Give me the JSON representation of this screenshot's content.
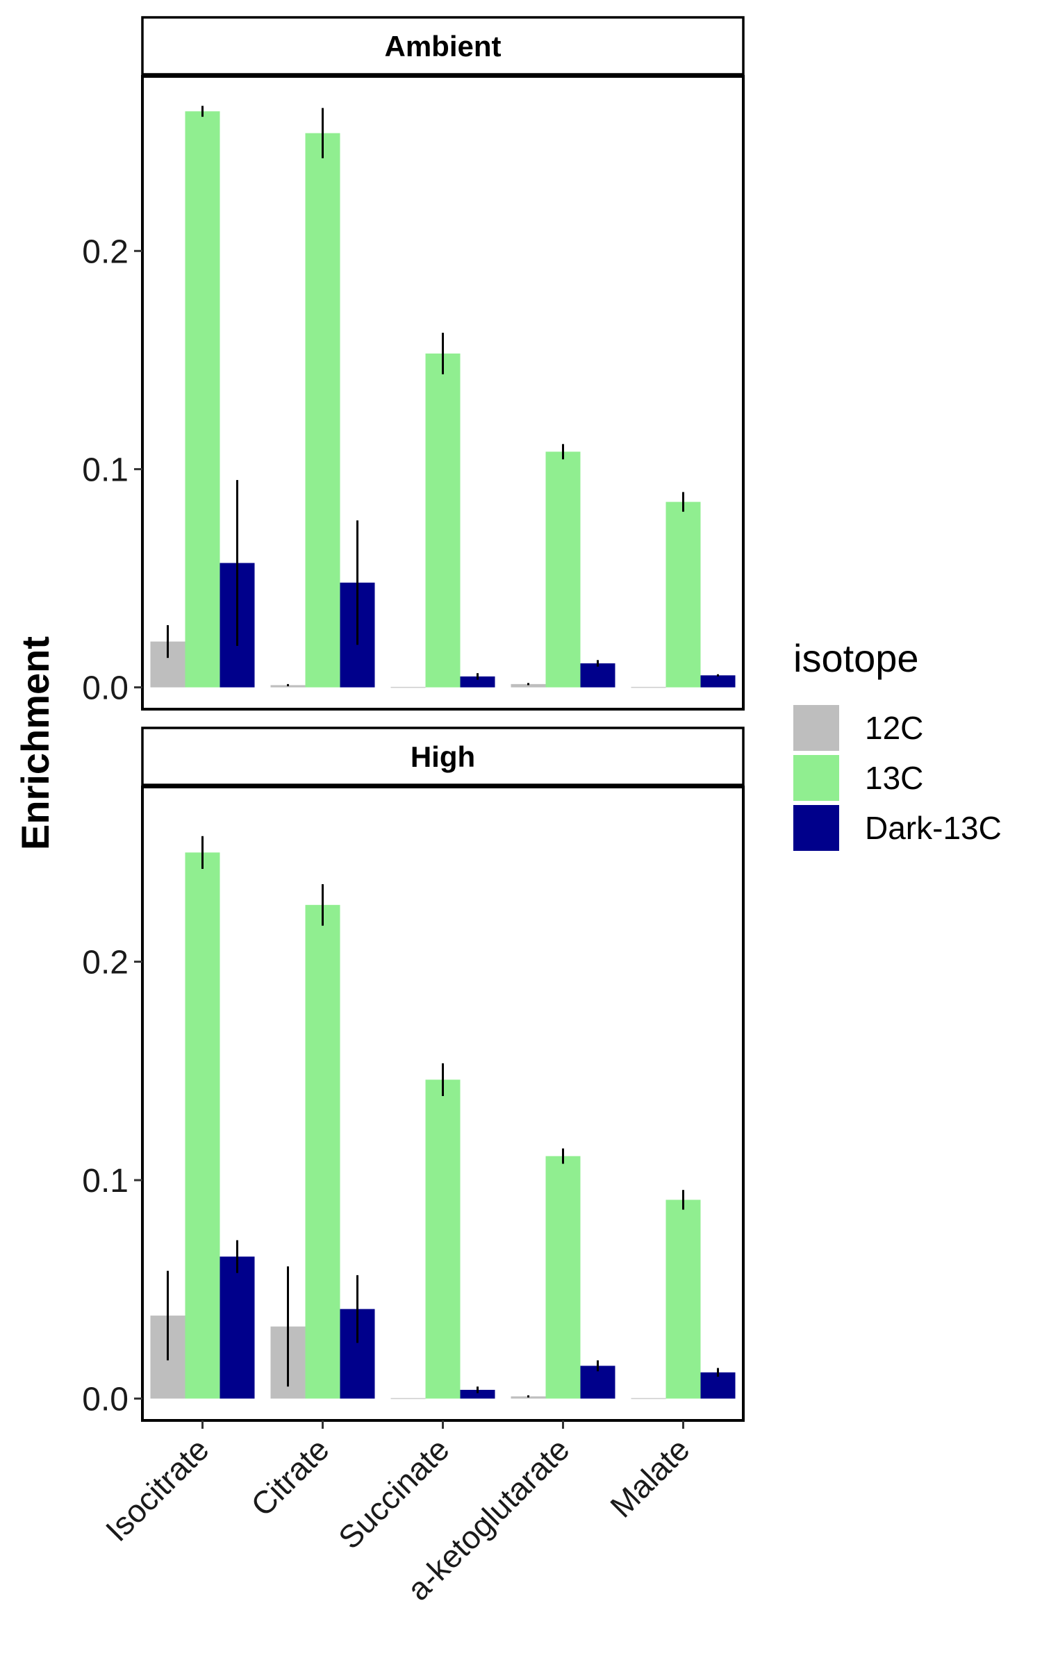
{
  "chart_data": {
    "type": "bar",
    "ylabel": "Enrichment",
    "xlabel": "",
    "categories": [
      "Isocitrate",
      "Citrate",
      "Succinate",
      "a-ketoglutarate",
      "Malate"
    ],
    "ylim": [
      -0.01,
      0.28
    ],
    "yticks": [
      0.0,
      0.1,
      0.2
    ],
    "ytick_labels": [
      "0.0",
      "0.1",
      "0.2"
    ],
    "grid": false,
    "legend": {
      "title": "isotope",
      "placement": "right",
      "entries": [
        {
          "label": "12C",
          "color": "#bebebe"
        },
        {
          "label": "13C",
          "color": "#90ee90"
        },
        {
          "label": "Dark-13C",
          "color": "#00008b"
        }
      ]
    },
    "panels": [
      {
        "strip": "Ambient",
        "series": [
          {
            "name": "12C",
            "color": "#bebebe",
            "values": [
              0.021,
              0.001,
              0.0,
              0.0015,
              0.0
            ],
            "errors": [
              0.0075,
              0.0005,
              0.0,
              0.0005,
              0.0
            ]
          },
          {
            "name": "13C",
            "color": "#90ee90",
            "values": [
              0.264,
              0.254,
              0.153,
              0.108,
              0.085
            ],
            "errors": [
              0.0025,
              0.0115,
              0.0095,
              0.0035,
              0.0045
            ]
          },
          {
            "name": "Dark-13C",
            "color": "#00008b",
            "values": [
              0.057,
              0.048,
              0.005,
              0.011,
              0.0055
            ],
            "errors": [
              0.038,
              0.0285,
              0.0015,
              0.0015,
              0.0005
            ]
          }
        ]
      },
      {
        "strip": "High",
        "series": [
          {
            "name": "12C",
            "color": "#bebebe",
            "values": [
              0.038,
              0.033,
              0.0,
              0.001,
              0.0
            ],
            "errors": [
              0.0205,
              0.0275,
              0.0,
              0.0005,
              0.0
            ]
          },
          {
            "name": "13C",
            "color": "#90ee90",
            "values": [
              0.25,
              0.226,
              0.146,
              0.111,
              0.091
            ],
            "errors": [
              0.0075,
              0.0095,
              0.0075,
              0.0035,
              0.0045
            ]
          },
          {
            "name": "Dark-13C",
            "color": "#00008b",
            "values": [
              0.065,
              0.041,
              0.004,
              0.015,
              0.012
            ],
            "errors": [
              0.0075,
              0.0155,
              0.0015,
              0.0025,
              0.002
            ]
          }
        ]
      }
    ]
  }
}
